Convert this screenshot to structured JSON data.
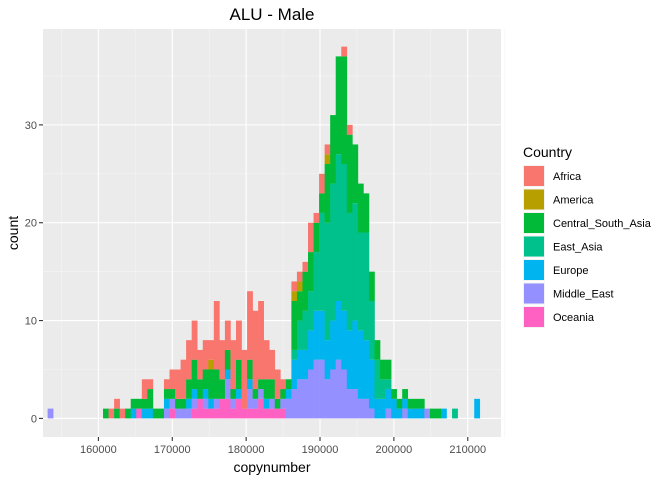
{
  "chart_data": {
    "type": "bar",
    "subtype": "stacked-histogram",
    "title": "ALU - Male",
    "xlabel": "copynumber",
    "ylabel": "count",
    "xlim": [
      152500,
      214500
    ],
    "ylim": [
      -1.9,
      39.8
    ],
    "x_ticks": [
      160000,
      170000,
      180000,
      190000,
      200000,
      210000
    ],
    "y_ticks": [
      0,
      10,
      20,
      30
    ],
    "bin_width": 750,
    "grid": true,
    "legend_title": "Country",
    "legend_position": "right",
    "stack_order": [
      "Oceania",
      "Middle_East",
      "Europe",
      "East_Asia",
      "Central_South_Asia",
      "America",
      "Africa"
    ],
    "series": [
      {
        "name": "Africa",
        "color": "#F8766D",
        "points": [
          [
            161750,
            1
          ],
          [
            162500,
            1
          ],
          [
            163250,
            1
          ],
          [
            166250,
            2
          ],
          [
            167000,
            1
          ],
          [
            169250,
            1
          ],
          [
            170000,
            2
          ],
          [
            170750,
            3
          ],
          [
            171500,
            4
          ],
          [
            172250,
            4
          ],
          [
            173000,
            4
          ],
          [
            173750,
            3
          ],
          [
            174500,
            3
          ],
          [
            175250,
            2
          ],
          [
            176000,
            7
          ],
          [
            176750,
            4
          ],
          [
            177500,
            3
          ],
          [
            178250,
            5
          ],
          [
            179000,
            4
          ],
          [
            179750,
            6
          ],
          [
            180500,
            7
          ],
          [
            181250,
            8
          ],
          [
            182000,
            8
          ],
          [
            182750,
            4
          ],
          [
            183500,
            3
          ],
          [
            184250,
            3
          ],
          [
            185000,
            1
          ],
          [
            186500,
            1
          ],
          [
            187250,
            1
          ],
          [
            188000,
            1
          ],
          [
            188750,
            3
          ],
          [
            189500,
            1
          ],
          [
            190250,
            2
          ],
          [
            191000,
            1
          ],
          [
            192500,
            0
          ],
          [
            193250,
            1
          ],
          [
            194000,
            1
          ]
        ]
      },
      {
        "name": "America",
        "color": "#B79F00",
        "points": [
          [
            175250,
            1
          ],
          [
            186500,
            1
          ],
          [
            187250,
            1
          ],
          [
            191000,
            1
          ],
          [
            192500,
            0
          ]
        ]
      },
      {
        "name": "Central_South_Asia",
        "color": "#00BA38",
        "points": [
          [
            161000,
            1
          ],
          [
            162500,
            1
          ],
          [
            164000,
            1
          ],
          [
            164750,
            1
          ],
          [
            165500,
            1
          ],
          [
            166250,
            1
          ],
          [
            167000,
            2
          ],
          [
            167750,
            1
          ],
          [
            168500,
            1
          ],
          [
            169250,
            1
          ],
          [
            170000,
            1
          ],
          [
            170750,
            1
          ],
          [
            171500,
            1
          ],
          [
            172250,
            2
          ],
          [
            173000,
            3
          ],
          [
            173750,
            2
          ],
          [
            174500,
            2
          ],
          [
            175250,
            3
          ],
          [
            176000,
            3
          ],
          [
            176750,
            2
          ],
          [
            177500,
            2
          ],
          [
            178250,
            1
          ],
          [
            179000,
            3
          ],
          [
            180500,
            2
          ],
          [
            181250,
            1
          ],
          [
            182000,
            1
          ],
          [
            182750,
            2
          ],
          [
            183500,
            2
          ],
          [
            184250,
            1
          ],
          [
            185000,
            1
          ],
          [
            185750,
            1
          ],
          [
            186500,
            5
          ],
          [
            187250,
            3
          ],
          [
            188000,
            4
          ],
          [
            188750,
            4
          ],
          [
            189500,
            3
          ],
          [
            190250,
            2
          ],
          [
            191000,
            6
          ],
          [
            191750,
            7
          ],
          [
            192500,
            10
          ],
          [
            193250,
            11
          ],
          [
            194000,
            8
          ],
          [
            194750,
            6
          ],
          [
            195500,
            5
          ],
          [
            196250,
            4
          ],
          [
            197000,
            3
          ],
          [
            197750,
            2
          ],
          [
            198500,
            2
          ],
          [
            199250,
            2
          ],
          [
            200000,
            1
          ],
          [
            200750,
            1
          ],
          [
            201500,
            1
          ],
          [
            202250,
            1
          ],
          [
            203000,
            1
          ],
          [
            203750,
            1
          ],
          [
            205250,
            1
          ],
          [
            206000,
            1
          ]
        ]
      },
      {
        "name": "East_Asia",
        "color": "#00C08B",
        "points": [
          [
            186500,
            1
          ],
          [
            187250,
            3
          ],
          [
            188000,
            4
          ],
          [
            188750,
            4
          ],
          [
            189500,
            6
          ],
          [
            190250,
            10
          ],
          [
            191000,
            12
          ],
          [
            191750,
            14
          ],
          [
            192500,
            15
          ],
          [
            193250,
            15
          ],
          [
            194000,
            12
          ],
          [
            194750,
            12
          ],
          [
            195500,
            10
          ],
          [
            196250,
            11
          ],
          [
            197000,
            6
          ],
          [
            197750,
            4
          ],
          [
            198500,
            2
          ],
          [
            199250,
            1
          ],
          [
            208250,
            1
          ]
        ]
      },
      {
        "name": "Europe",
        "color": "#00B4F0",
        "points": [
          [
            164750,
            1
          ],
          [
            166250,
            1
          ],
          [
            167000,
            1
          ],
          [
            169250,
            1
          ],
          [
            172250,
            1
          ],
          [
            173000,
            1
          ],
          [
            174500,
            1
          ],
          [
            175250,
            1
          ],
          [
            177500,
            1
          ],
          [
            179000,
            1
          ],
          [
            180500,
            1
          ],
          [
            182750,
            1
          ],
          [
            185750,
            1
          ],
          [
            186500,
            3
          ],
          [
            187250,
            3
          ],
          [
            188000,
            3
          ],
          [
            188750,
            4
          ],
          [
            189500,
            5
          ],
          [
            190250,
            5
          ],
          [
            191000,
            4
          ],
          [
            191750,
            5
          ],
          [
            192500,
            6
          ],
          [
            193250,
            6
          ],
          [
            194000,
            6
          ],
          [
            194750,
            7
          ],
          [
            195500,
            7
          ],
          [
            196250,
            6
          ],
          [
            197000,
            5
          ],
          [
            197750,
            2
          ],
          [
            198500,
            2
          ],
          [
            199250,
            2
          ],
          [
            200000,
            2
          ],
          [
            200750,
            1
          ],
          [
            201500,
            1
          ],
          [
            202250,
            1
          ],
          [
            203000,
            1
          ],
          [
            203750,
            1
          ],
          [
            206750,
            1
          ],
          [
            211250,
            2
          ]
        ]
      },
      {
        "name": "Middle_East",
        "color": "#9590FF",
        "points": [
          [
            153500,
            1
          ],
          [
            169250,
            1
          ],
          [
            170000,
            1
          ],
          [
            170750,
            1
          ],
          [
            171500,
            1
          ],
          [
            172250,
            1
          ],
          [
            173000,
            1
          ],
          [
            174500,
            1
          ],
          [
            176000,
            1
          ],
          [
            177500,
            2
          ],
          [
            178250,
            1
          ],
          [
            180500,
            2
          ],
          [
            181250,
            1
          ],
          [
            182000,
            1
          ],
          [
            183500,
            1
          ],
          [
            185000,
            1
          ],
          [
            185750,
            2
          ],
          [
            186500,
            3
          ],
          [
            187250,
            4
          ],
          [
            188000,
            4
          ],
          [
            188750,
            5
          ],
          [
            189500,
            6
          ],
          [
            190250,
            6
          ],
          [
            191000,
            4
          ],
          [
            191750,
            5
          ],
          [
            192500,
            6
          ],
          [
            193250,
            5
          ],
          [
            194000,
            3
          ],
          [
            194750,
            3
          ],
          [
            195500,
            2
          ],
          [
            196250,
            2
          ],
          [
            197000,
            1
          ],
          [
            199250,
            1
          ],
          [
            201500,
            1
          ],
          [
            204500,
            1
          ]
        ]
      },
      {
        "name": "Oceania",
        "color": "#FF61C3",
        "points": [
          [
            165500,
            1
          ],
          [
            170000,
            1
          ],
          [
            173000,
            1
          ],
          [
            173750,
            2
          ],
          [
            174500,
            1
          ],
          [
            175250,
            1
          ],
          [
            176000,
            1
          ],
          [
            176750,
            2
          ],
          [
            177500,
            2
          ],
          [
            178250,
            1
          ],
          [
            179000,
            2
          ],
          [
            179750,
            1
          ],
          [
            180500,
            1
          ],
          [
            181250,
            1
          ],
          [
            182000,
            2
          ],
          [
            182750,
            1
          ],
          [
            183500,
            1
          ],
          [
            184250,
            1
          ],
          [
            185000,
            1
          ]
        ]
      }
    ]
  }
}
